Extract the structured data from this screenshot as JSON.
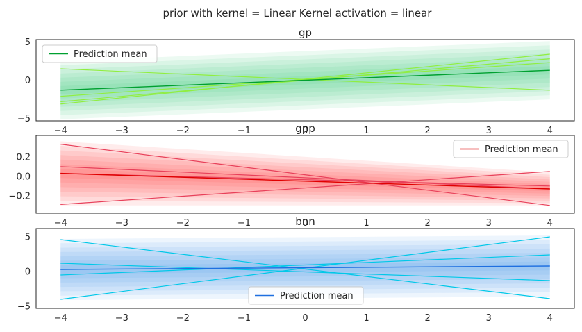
{
  "figure": {
    "suptitle": "prior with kernel = Linear Kernel activation = linear"
  },
  "chart_data": [
    {
      "type": "line",
      "title": "gp",
      "xlabel": "",
      "ylabel": "",
      "xlim": [
        -4.4,
        4.4
      ],
      "ylim": [
        -5.3,
        5.3
      ],
      "xticks": [
        -4,
        -3,
        -2,
        -1,
        0,
        1,
        2,
        3,
        4
      ],
      "xtick_labels": [
        "−4",
        "−3",
        "−2",
        "−1",
        "0",
        "1",
        "2",
        "3",
        "4"
      ],
      "yticks": [
        -5,
        0,
        5
      ],
      "ytick_labels": [
        "−5",
        "0",
        "5"
      ],
      "x": [
        -4,
        4
      ],
      "mean": [
        -1.3,
        1.3
      ],
      "band_halfwidth": [
        3.8,
        3.8
      ],
      "samples": [
        [
          1.5,
          -1.3
        ],
        [
          -2.1,
          2.3
        ],
        [
          -2.8,
          2.8
        ],
        [
          -3.1,
          3.4
        ]
      ],
      "legend": {
        "entries": [
          "Prediction mean"
        ],
        "position": "top-left"
      },
      "colors": {
        "mean": "#00a030",
        "band": "#2ecc71",
        "sample": "#90ee40"
      },
      "grid": false
    },
    {
      "type": "line",
      "title": "gpp",
      "xlabel": "",
      "ylabel": "",
      "xlim": [
        -4.4,
        4.4
      ],
      "ylim": [
        -0.38,
        0.42
      ],
      "xticks": [
        -4,
        -3,
        -2,
        -1,
        0,
        1,
        2,
        3,
        4
      ],
      "xtick_labels": [
        "−4",
        "−3",
        "−2",
        "−1",
        "0",
        "1",
        "2",
        "3",
        "4"
      ],
      "yticks": [
        -0.2,
        0.0,
        0.2
      ],
      "ytick_labels": [
        "−0.2",
        "0.0",
        "0.2"
      ],
      "x": [
        -4,
        4
      ],
      "mean": [
        0.03,
        -0.13
      ],
      "band_halfwidth": [
        0.33,
        0.17
      ],
      "samples": [
        [
          0.33,
          -0.3
        ],
        [
          -0.29,
          0.05
        ],
        [
          0.1,
          -0.13
        ],
        [
          0.03,
          -0.1
        ]
      ],
      "legend": {
        "entries": [
          "Prediction mean"
        ],
        "position": "top-right"
      },
      "colors": {
        "mean": "#e00000",
        "band": "#ff3030",
        "sample": "#e8405a"
      },
      "grid": false
    },
    {
      "type": "line",
      "title": "bnn",
      "xlabel": "",
      "ylabel": "",
      "xlim": [
        -4.4,
        4.4
      ],
      "ylim": [
        -5.3,
        6.2
      ],
      "xticks": [
        -4,
        -3,
        -2,
        -1,
        0,
        1,
        2,
        3,
        4
      ],
      "xtick_labels": [
        "−4",
        "−3",
        "−2",
        "−1",
        "0",
        "1",
        "2",
        "3",
        "4"
      ],
      "yticks": [
        -5,
        0,
        5
      ],
      "ytick_labels": [
        "−5",
        "0",
        "5"
      ],
      "x": [
        -4,
        4
      ],
      "mean": [
        0.3,
        0.8
      ],
      "band_halfwidth": [
        4.4,
        4.4
      ],
      "samples": [
        [
          4.6,
          -3.9
        ],
        [
          -4.0,
          5.0
        ],
        [
          -0.5,
          2.4
        ],
        [
          1.2,
          -1.3
        ]
      ],
      "legend": {
        "entries": [
          "Prediction mean"
        ],
        "position": "lower-center"
      },
      "colors": {
        "mean": "#1e6fe0",
        "band": "#3a8ee8",
        "sample": "#00c8e8"
      },
      "grid": false
    }
  ]
}
